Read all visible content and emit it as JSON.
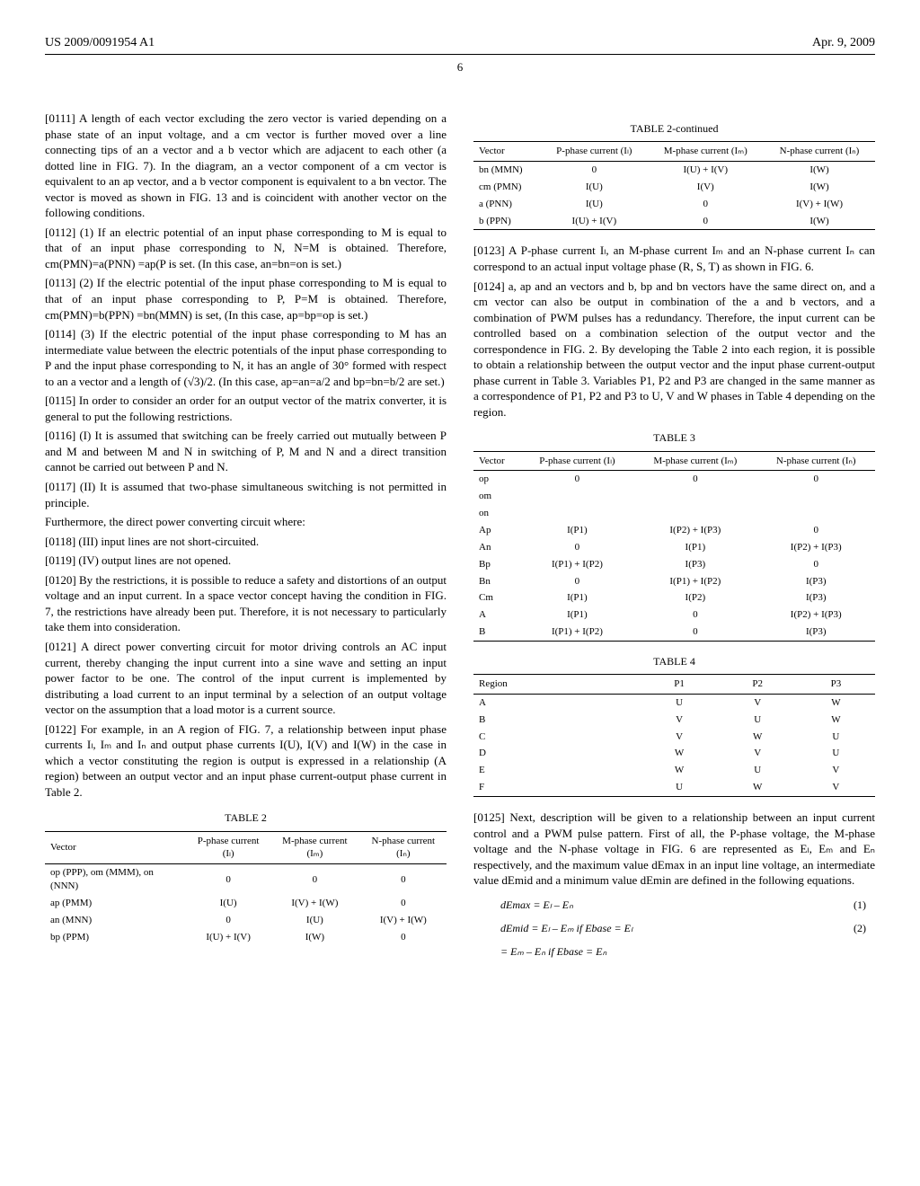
{
  "header": {
    "patent_number": "US 2009/0091954 A1",
    "date": "Apr. 9, 2009",
    "page": "6"
  },
  "left_col": {
    "p0111": "[0111]   A length of each vector excluding the zero vector is varied depending on a phase state of an input voltage, and a cm vector is further moved over a line connecting tips of an a vector and a b vector which are adjacent to each other (a dotted line in FIG. 7). In the diagram, an a vector component of a cm vector is equivalent to an ap vector, and a b vector component is equivalent to a bn vector. The vector is moved as shown in FIG. 13 and is coincident with another vector on the following conditions.",
    "p0112": "[0112]   (1) If an electric potential of an input phase corresponding to M is equal to that of an input phase corresponding to N, N=M is obtained. Therefore, cm(PMN)=a(PNN) =ap(P is set. (In this case, an=bn=on is set.)",
    "p0113": "[0113]   (2) If the electric potential of the input phase corresponding to M is equal to that of an input phase corresponding to P, P=M is obtained. Therefore, cm(PMN)=b(PPN) =bn(MMN) is set, (In this case, ap=bp=op is set.)",
    "p0114": "[0114]   (3) If the electric potential of the input phase corresponding to M has an intermediate value between the electric potentials of the input phase corresponding to P and the input phase corresponding to N, it has an angle of 30° formed with respect to an a vector and a length of (√3)/2. (In this case, ap=an=a/2 and bp=bn=b/2 are set.)",
    "p0115": "[0115]   In order to consider an order for an output vector of the matrix converter, it is general to put the following restrictions.",
    "p0116": "[0116]   (I) It is assumed that switching can be freely carried out mutually between P and M and between M and N in switching of P, M and N and a direct transition cannot be carried out between P and N.",
    "p0117": "[0117]   (II) It is assumed that two-phase simultaneous switching is not permitted in principle.",
    "furthermore": "Furthermore, the direct power converting circuit where:",
    "p0118": "[0118]   (III) input lines are not short-circuited.",
    "p0119": "[0119]   (IV) output lines are not opened.",
    "p0120": "[0120]   By the restrictions, it is possible to reduce a safety and distortions of an output voltage and an input current. In a space vector concept having the condition in FIG. 7, the restrictions have already been put. Therefore, it is not necessary to particularly take them into consideration.",
    "p0121": "[0121]   A direct power converting circuit for motor driving controls an AC input current, thereby changing the input current into a sine wave and setting an input power factor to be one. The control of the input current is implemented by distributing a load current to an input terminal by a selection of an output voltage vector on the assumption that a load motor is a current source.",
    "p0122": "[0122]   For example, in an A region of FIG. 7, a relationship between input phase currents Iₗ, Iₘ and Iₙ and output phase currents I(U), I(V) and I(W) in the case in which a vector constituting the region is output is expressed in a relationship (A region) between an output vector and an input phase current-output phase current in Table 2."
  },
  "right_col": {
    "p0123": "[0123]   A P-phase current Iₗ, an M-phase current Iₘ and an N-phase current Iₙ can correspond to an actual input voltage phase (R, S, T) as shown in FIG. 6.",
    "p0124": "[0124]   a, ap and an vectors and b, bp and bn vectors have the same direct on, and a cm vector can also be output in combination of the a and b vectors, and a combination of PWM pulses has a redundancy. Therefore, the input current can be controlled based on a combination selection of the output vector and the correspondence in FIG. 2. By developing the Table 2 into each region, it is possible to obtain a relationship between the output vector and the input phase current-output phase current in Table 3. Variables P1, P2 and P3 are changed in the same manner as a correspondence of P1, P2 and P3 to U, V and W phases in Table 4 depending on the region.",
    "p0125": "[0125]   Next, description will be given to a relationship between an input current control and a PWM pulse pattern. First of all, the P-phase voltage, the M-phase voltage and the N-phase voltage in FIG. 6 are represented as Eₗ, Eₘ and Eₙ respectively, and the maximum value dEmax in an input line voltage, an intermediate value dEmid and a minimum value dEmin are defined in the following equations."
  },
  "tables": {
    "t2": {
      "caption": "TABLE 2",
      "headers": [
        "Vector",
        "P-phase current (Iₗ)",
        "M-phase current (Iₘ)",
        "N-phase current (Iₙ)"
      ],
      "rows": [
        [
          "op (PPP), om (MMM), on (NNN)",
          "0",
          "0",
          "0"
        ],
        [
          "ap (PMM)",
          "I(U)",
          "I(V) + I(W)",
          "0"
        ],
        [
          "an (MNN)",
          "0",
          "I(U)",
          "I(V) + I(W)"
        ],
        [
          "bp (PPM)",
          "I(U) + I(V)",
          "I(W)",
          "0"
        ]
      ]
    },
    "t2c": {
      "caption": "TABLE 2-continued",
      "headers": [
        "Vector",
        "P-phase current (Iₗ)",
        "M-phase current (Iₘ)",
        "N-phase current (Iₙ)"
      ],
      "rows": [
        [
          "bn (MMN)",
          "0",
          "I(U) + I(V)",
          "I(W)"
        ],
        [
          "cm (PMN)",
          "I(U)",
          "I(V)",
          "I(W)"
        ],
        [
          "a (PNN)",
          "I(U)",
          "0",
          "I(V) + I(W)"
        ],
        [
          "b (PPN)",
          "I(U) + I(V)",
          "0",
          "I(W)"
        ]
      ]
    },
    "t3": {
      "caption": "TABLE 3",
      "headers": [
        "Vector",
        "P-phase current (Iₗ)",
        "M-phase current (Iₘ)",
        "N-phase current (Iₙ)"
      ],
      "rows": [
        [
          "op",
          "0",
          "0",
          "0"
        ],
        [
          "om",
          "",
          "",
          ""
        ],
        [
          "on",
          "",
          "",
          ""
        ],
        [
          "Ap",
          "I(P1)",
          "I(P2) + I(P3)",
          "0"
        ],
        [
          "An",
          "0",
          "I(P1)",
          "I(P2) + I(P3)"
        ],
        [
          "Bp",
          "I(P1) + I(P2)",
          "I(P3)",
          "0"
        ],
        [
          "Bn",
          "0",
          "I(P1) + I(P2)",
          "I(P3)"
        ],
        [
          "Cm",
          "I(P1)",
          "I(P2)",
          "I(P3)"
        ],
        [
          "A",
          "I(P1)",
          "0",
          "I(P2) + I(P3)"
        ],
        [
          "B",
          "I(P1) + I(P2)",
          "0",
          "I(P3)"
        ]
      ]
    },
    "t4": {
      "caption": "TABLE 4",
      "headers": [
        "Region",
        "P1",
        "P2",
        "P3"
      ],
      "rows": [
        [
          "A",
          "U",
          "V",
          "W"
        ],
        [
          "B",
          "V",
          "U",
          "W"
        ],
        [
          "C",
          "V",
          "W",
          "U"
        ],
        [
          "D",
          "W",
          "V",
          "U"
        ],
        [
          "E",
          "W",
          "U",
          "V"
        ],
        [
          "F",
          "U",
          "W",
          "V"
        ]
      ]
    }
  },
  "equations": {
    "e1": {
      "text": "dEmax = Eₗ – Eₙ",
      "num": "(1)"
    },
    "e2": {
      "text": "dEmid = Eₗ – Eₘ if Ebase = Eₗ",
      "num": "(2)"
    },
    "e2b": {
      "text": "       = Eₘ – Eₙ if Ebase = Eₙ"
    }
  }
}
